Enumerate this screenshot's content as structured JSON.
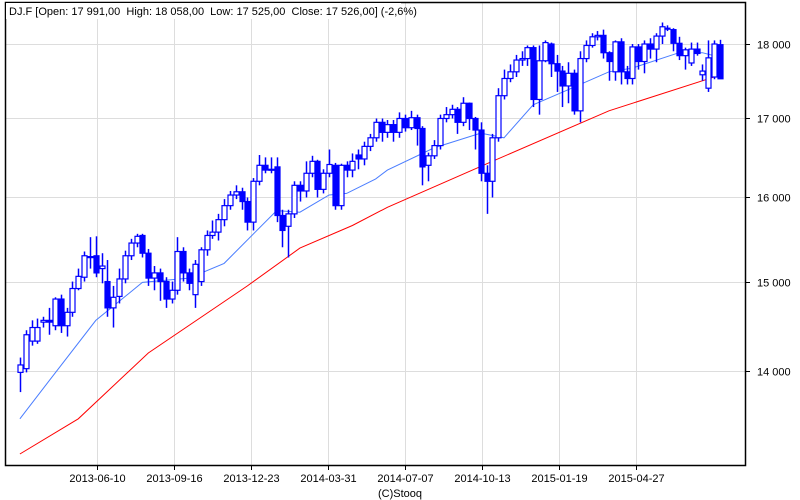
{
  "header": {
    "text": "DJ.F [Open: 17 991,00  High: 18 058,00  Low: 17 525,00  Close: 17 526,00] (-2,6%)"
  },
  "footer": {
    "credit": "(C)Stooq"
  },
  "colors": {
    "candle": "#0000ff",
    "ma_fast": "#4a7dff",
    "ma_slow": "#ff0000",
    "grid": "#dddddd",
    "axis": "#000000"
  },
  "chart_data": {
    "type": "candlestick",
    "title": "DJ.F [Open: 17 991,00  High: 18 058,00  Low: 17 525,00  Close: 17 526,00] (-2,6%)",
    "y_scale": "log",
    "ylim": [
      13030,
      18590
    ],
    "xlim": [
      "2013-02-13",
      "2015-09-12"
    ],
    "candle_date_range": [
      "2013-03-04",
      "2015-08-11"
    ],
    "grid": true,
    "y_ticks": [
      {
        "value": 14000,
        "label": "14 000"
      },
      {
        "value": 15000,
        "label": "15 000"
      },
      {
        "value": 16000,
        "label": "16 000"
      },
      {
        "value": 17000,
        "label": "17 000"
      },
      {
        "value": 18000,
        "label": "18 000"
      }
    ],
    "x_ticks": [
      {
        "date": "2013-06-10",
        "label": "2013-06-10"
      },
      {
        "date": "2013-09-16",
        "label": "2013-09-16"
      },
      {
        "date": "2013-12-23",
        "label": "2013-12-23"
      },
      {
        "date": "2014-03-31",
        "label": "2014-03-31"
      },
      {
        "date": "2014-07-07",
        "label": "2014-07-07"
      },
      {
        "date": "2014-10-13",
        "label": "2014-10-13"
      },
      {
        "date": "2015-01-19",
        "label": "2015-01-19"
      },
      {
        "date": "2015-04-27",
        "label": "2015-04-27"
      }
    ],
    "ohlc": [
      [
        13990,
        14150,
        13780,
        14070
      ],
      [
        14030,
        14450,
        13990,
        14400
      ],
      [
        14330,
        14560,
        14280,
        14480
      ],
      [
        14330,
        14580,
        14300,
        14480
      ],
      [
        14540,
        14600,
        14480,
        14560
      ],
      [
        14560,
        14700,
        14400,
        14540
      ],
      [
        14500,
        14820,
        14450,
        14800
      ],
      [
        14800,
        14850,
        14420,
        14500
      ],
      [
        14500,
        14700,
        14380,
        14650
      ],
      [
        14650,
        15000,
        14600,
        14920
      ],
      [
        14920,
        15150,
        14900,
        15060
      ],
      [
        15050,
        15350,
        15000,
        15300
      ],
      [
        15290,
        15520,
        15150,
        15290
      ],
      [
        15300,
        15530,
        15050,
        15100
      ],
      [
        15150,
        15330,
        14980,
        15180
      ],
      [
        15000,
        15250,
        14600,
        14700
      ],
      [
        14700,
        14950,
        14480,
        14820
      ],
      [
        14830,
        15150,
        14750,
        15030
      ],
      [
        15030,
        15360,
        14980,
        15300
      ],
      [
        15300,
        15500,
        15250,
        15450
      ],
      [
        15450,
        15560,
        15400,
        15530
      ],
      [
        15540,
        15560,
        15280,
        15330
      ],
      [
        15330,
        15380,
        14950,
        15040
      ],
      [
        15040,
        15180,
        14900,
        15100
      ],
      [
        15100,
        15150,
        14780,
        15000
      ],
      [
        15000,
        15050,
        14700,
        14800
      ],
      [
        14800,
        15000,
        14750,
        14900
      ],
      [
        14900,
        15520,
        14850,
        15350
      ],
      [
        15350,
        15400,
        15000,
        15100
      ],
      [
        15100,
        15150,
        14900,
        14980
      ],
      [
        14850,
        15250,
        14700,
        15200
      ],
      [
        15000,
        15400,
        14950,
        15370
      ],
      [
        15370,
        15600,
        15300,
        15540
      ],
      [
        15540,
        15720,
        15500,
        15580
      ],
      [
        15580,
        15800,
        15480,
        15730
      ],
      [
        15730,
        15980,
        15650,
        15900
      ],
      [
        15900,
        16080,
        15850,
        16030
      ],
      [
        16030,
        16150,
        15980,
        16070
      ],
      [
        16070,
        16120,
        15850,
        15950
      ],
      [
        15950,
        16000,
        15600,
        15700
      ],
      [
        15700,
        16240,
        15600,
        16200
      ],
      [
        16200,
        16530,
        16150,
        16400
      ],
      [
        16400,
        16500,
        16300,
        16340
      ],
      [
        16350,
        16500,
        16300,
        16350
      ],
      [
        16380,
        16500,
        15700,
        15780
      ],
      [
        15780,
        15850,
        15400,
        15600
      ],
      [
        15650,
        15850,
        15280,
        15800
      ],
      [
        15800,
        16200,
        15750,
        16150
      ],
      [
        16150,
        16200,
        15950,
        16080
      ],
      [
        16080,
        16450,
        16000,
        16300
      ],
      [
        16300,
        16520,
        16250,
        16450
      ],
      [
        16450,
        16470,
        16000,
        16100
      ],
      [
        16100,
        16350,
        16050,
        16300
      ],
      [
        16300,
        16600,
        16250,
        16410
      ],
      [
        16400,
        16430,
        15850,
        15900
      ],
      [
        15900,
        16420,
        15850,
        16400
      ],
      [
        16400,
        16450,
        16250,
        16340
      ],
      [
        16340,
        16550,
        16250,
        16450
      ],
      [
        16530,
        16600,
        16350,
        16480
      ],
      [
        16480,
        16700,
        16400,
        16640
      ],
      [
        16640,
        16800,
        16580,
        16750
      ],
      [
        16750,
        17000,
        16700,
        16950
      ],
      [
        16950,
        17000,
        16700,
        16820
      ],
      [
        16820,
        16980,
        16750,
        16920
      ],
      [
        16920,
        16980,
        16700,
        16820
      ],
      [
        16820,
        17080,
        16750,
        17000
      ],
      [
        17000,
        17050,
        16830,
        16880
      ],
      [
        16880,
        17100,
        16850,
        17010
      ],
      [
        17010,
        17050,
        16650,
        16870
      ],
      [
        16870,
        16900,
        16150,
        16380
      ],
      [
        16400,
        16560,
        16200,
        16520
      ],
      [
        16520,
        16720,
        16480,
        16650
      ],
      [
        16650,
        17050,
        16600,
        17000
      ],
      [
        17000,
        17150,
        16950,
        17050
      ],
      [
        17050,
        17180,
        17000,
        17120
      ],
      [
        17120,
        17150,
        16800,
        16950
      ],
      [
        16950,
        17280,
        16900,
        17200
      ],
      [
        17200,
        17210,
        16850,
        17000
      ],
      [
        17000,
        17020,
        16600,
        16850
      ],
      [
        16850,
        16950,
        16200,
        16300
      ],
      [
        16300,
        16400,
        15800,
        16200
      ],
      [
        16200,
        16800,
        16000,
        16750
      ],
      [
        16750,
        17400,
        16700,
        17300
      ],
      [
        17300,
        17650,
        17250,
        17530
      ],
      [
        17530,
        17720,
        17480,
        17620
      ],
      [
        17620,
        17850,
        17550,
        17780
      ],
      [
        17780,
        17900,
        17700,
        17800
      ],
      [
        17800,
        17980,
        17700,
        17950
      ],
      [
        17950,
        17980,
        17150,
        17250
      ],
      [
        17250,
        17980,
        17050,
        17770
      ],
      [
        17770,
        18050,
        17750,
        18020
      ],
      [
        18000,
        18020,
        17550,
        17730
      ],
      [
        17730,
        17850,
        17350,
        17630
      ],
      [
        17630,
        17700,
        17150,
        17430
      ],
      [
        17430,
        17750,
        17200,
        17600
      ],
      [
        17600,
        17650,
        17050,
        17100
      ],
      [
        17100,
        17900,
        16950,
        17800
      ],
      [
        17800,
        18050,
        17750,
        17980
      ],
      [
        17980,
        18150,
        17950,
        18100
      ],
      [
        18100,
        18180,
        18050,
        18120
      ],
      [
        18120,
        18200,
        17800,
        17880
      ],
      [
        17880,
        17900,
        17500,
        17760
      ],
      [
        17620,
        18050,
        17500,
        18030
      ],
      [
        18030,
        18080,
        17450,
        17620
      ],
      [
        17620,
        17700,
        17450,
        17530
      ],
      [
        17530,
        18000,
        17450,
        17960
      ],
      [
        17960,
        18000,
        17650,
        17760
      ],
      [
        17760,
        18050,
        17600,
        18000
      ],
      [
        18000,
        18080,
        17800,
        17930
      ],
      [
        17930,
        18150,
        17750,
        18110
      ],
      [
        18110,
        18300,
        18000,
        18240
      ],
      [
        18220,
        18260,
        18180,
        18210
      ],
      [
        18200,
        18220,
        17900,
        18010
      ],
      [
        18010,
        18100,
        17780,
        17840
      ],
      [
        17840,
        17950,
        17650,
        17920
      ],
      [
        17740,
        18020,
        17700,
        17930
      ],
      [
        17930,
        18020,
        17840,
        17870
      ],
      [
        17580,
        17720,
        17500,
        17630
      ],
      [
        17400,
        18050,
        17350,
        17810
      ],
      [
        17550,
        18050,
        17520,
        18000
      ],
      [
        17991,
        18058,
        17525,
        17526
      ]
    ],
    "series": [
      {
        "name": "moving-average-fast",
        "color": "#4a7dff",
        "points": [
          [
            0,
            13500
          ],
          [
            5,
            13900
          ],
          [
            13,
            14560
          ],
          [
            21,
            14990
          ],
          [
            29,
            15040
          ],
          [
            35,
            15210
          ],
          [
            44,
            15840
          ],
          [
            48,
            15820
          ],
          [
            53,
            16030
          ],
          [
            56,
            16050
          ],
          [
            61,
            16230
          ],
          [
            63,
            16340
          ],
          [
            71,
            16620
          ],
          [
            79,
            16810
          ],
          [
            83,
            16750
          ],
          [
            88,
            17180
          ],
          [
            94,
            17380
          ],
          [
            101,
            17620
          ],
          [
            105,
            17670
          ],
          [
            113,
            17880
          ],
          [
            117,
            17880
          ],
          [
            120,
            17820
          ]
        ]
      },
      {
        "name": "moving-average-slow",
        "color": "#ff0000",
        "points": [
          [
            0,
            13140
          ],
          [
            10,
            13500
          ],
          [
            22,
            14200
          ],
          [
            39,
            14950
          ],
          [
            48,
            15390
          ],
          [
            57,
            15660
          ],
          [
            63,
            15880
          ],
          [
            81,
            16450
          ],
          [
            101,
            17100
          ],
          [
            120,
            17575
          ]
        ]
      }
    ]
  }
}
